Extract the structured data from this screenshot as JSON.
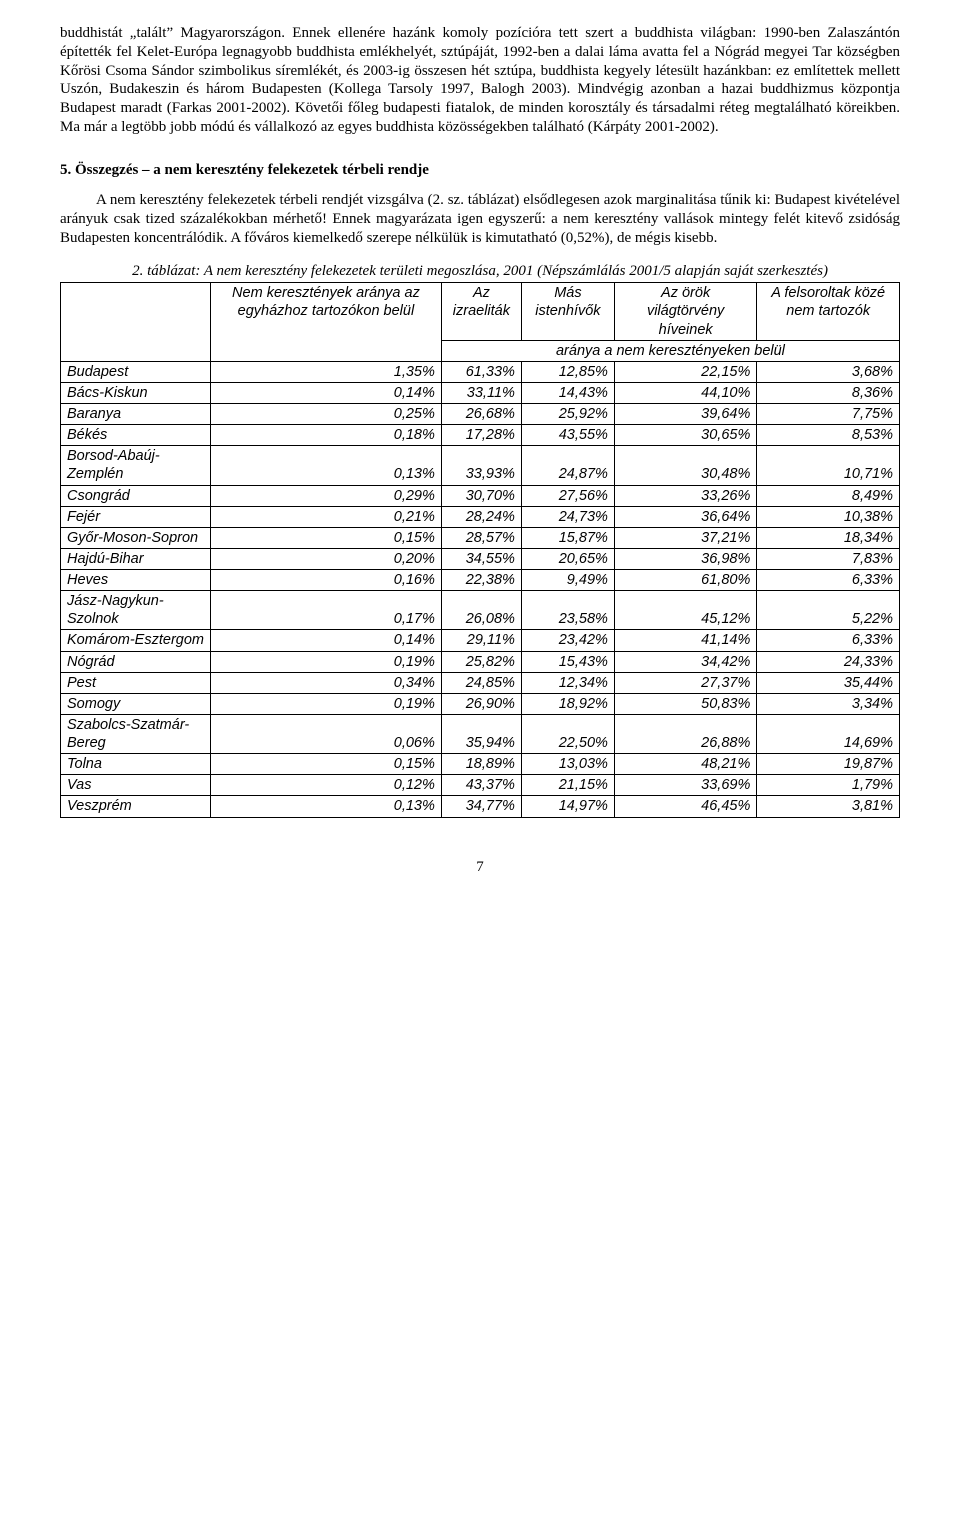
{
  "paragraph1": "buddhistát „talált” Magyarországon. Ennek ellenére hazánk komoly pozícióra tett szert a buddhista világban: 1990-ben Zalaszántón építették fel Kelet-Európa legnagyobb buddhista emlékhelyét, sztúpáját, 1992-ben a dalai láma avatta fel a Nógrád megyei Tar községben Kőrösi Csoma Sándor szimbolikus síremlékét, és 2003-ig összesen hét sztúpa, buddhista kegyely létesült hazánkban: ez említettek mellett Uszón, Budakeszin és három Budapesten (Kollega Tarsoly 1997, Balogh 2003). Mindvégig azonban a hazai buddhizmus központja Budapest maradt (Farkas 2001-2002). Követői főleg budapesti fiatalok, de minden korosztály és társadalmi réteg megtalálható köreikben. Ma már a legtöbb jobb módú és vállalkozó az egyes buddhista közösségekben található (Kárpáty 2001-2002).",
  "sectionHeading": "5. Összegzés – a nem keresztény felekezetek térbeli rendje",
  "paragraph2": "A nem keresztény felekezetek térbeli rendjét vizsgálva (2. sz. táblázat) elsődlegesen azok marginalitása tűnik ki: Budapest kivételével arányuk csak tized százalékokban mérhető! Ennek magyarázata igen egyszerű: a nem keresztény vallások mintegy felét kitevő zsidóság Budapesten koncentrálódik. A főváros kiemelkedő szerepe nélkülük is kimutatható (0,52%), de mégis kisebb.",
  "tableCaption": "2. táblázat: A nem keresztény felekezetek területi megoszlása, 2001 (Népszámlálás 2001/5 alapján saját szerkesztés)",
  "headers": {
    "col1": "Nem keresztények aránya az egyházhoz tartozókon belül",
    "col2": "Az izraeliták",
    "col3": "Más istenhívők",
    "col4": "Az örök világtörvény híveinek",
    "col5": "A felsoroltak közé nem tartozók",
    "spanLabel": "aránya a nem keresztényeken belül"
  },
  "rows": [
    {
      "label": "Budapest",
      "v": [
        "1,35%",
        "61,33%",
        "12,85%",
        "22,15%",
        "3,68%"
      ]
    },
    {
      "label": "Bács-Kiskun",
      "v": [
        "0,14%",
        "33,11%",
        "14,43%",
        "44,10%",
        "8,36%"
      ]
    },
    {
      "label": "Baranya",
      "v": [
        "0,25%",
        "26,68%",
        "25,92%",
        "39,64%",
        "7,75%"
      ]
    },
    {
      "label": "Békés",
      "v": [
        "0,18%",
        "17,28%",
        "43,55%",
        "30,65%",
        "8,53%"
      ]
    },
    {
      "label": "Borsod-Abaúj-Zemplén",
      "v": [
        "0,13%",
        "33,93%",
        "24,87%",
        "30,48%",
        "10,71%"
      ]
    },
    {
      "label": "Csongrád",
      "v": [
        "0,29%",
        "30,70%",
        "27,56%",
        "33,26%",
        "8,49%"
      ]
    },
    {
      "label": "Fejér",
      "v": [
        "0,21%",
        "28,24%",
        "24,73%",
        "36,64%",
        "10,38%"
      ]
    },
    {
      "label": "Győr-Moson-Sopron",
      "v": [
        "0,15%",
        "28,57%",
        "15,87%",
        "37,21%",
        "18,34%"
      ]
    },
    {
      "label": "Hajdú-Bihar",
      "v": [
        "0,20%",
        "34,55%",
        "20,65%",
        "36,98%",
        "7,83%"
      ]
    },
    {
      "label": "Heves",
      "v": [
        "0,16%",
        "22,38%",
        "9,49%",
        "61,80%",
        "6,33%"
      ]
    },
    {
      "label": "Jász-Nagykun-Szolnok",
      "v": [
        "0,17%",
        "26,08%",
        "23,58%",
        "45,12%",
        "5,22%"
      ]
    },
    {
      "label": "Komárom-Esztergom",
      "v": [
        "0,14%",
        "29,11%",
        "23,42%",
        "41,14%",
        "6,33%"
      ]
    },
    {
      "label": "Nógrád",
      "v": [
        "0,19%",
        "25,82%",
        "15,43%",
        "34,42%",
        "24,33%"
      ]
    },
    {
      "label": "Pest",
      "v": [
        "0,34%",
        "24,85%",
        "12,34%",
        "27,37%",
        "35,44%"
      ]
    },
    {
      "label": "Somogy",
      "v": [
        "0,19%",
        "26,90%",
        "18,92%",
        "50,83%",
        "3,34%"
      ]
    },
    {
      "label": "Szabolcs-Szatmár-Bereg",
      "v": [
        "0,06%",
        "35,94%",
        "22,50%",
        "26,88%",
        "14,69%"
      ]
    },
    {
      "label": "Tolna",
      "v": [
        "0,15%",
        "18,89%",
        "13,03%",
        "48,21%",
        "19,87%"
      ]
    },
    {
      "label": "Vas",
      "v": [
        "0,12%",
        "43,37%",
        "21,15%",
        "33,69%",
        "1,79%"
      ]
    },
    {
      "label": "Veszprém",
      "v": [
        "0,13%",
        "34,77%",
        "14,97%",
        "46,45%",
        "3,81%"
      ]
    }
  ],
  "pageNumber": "7"
}
